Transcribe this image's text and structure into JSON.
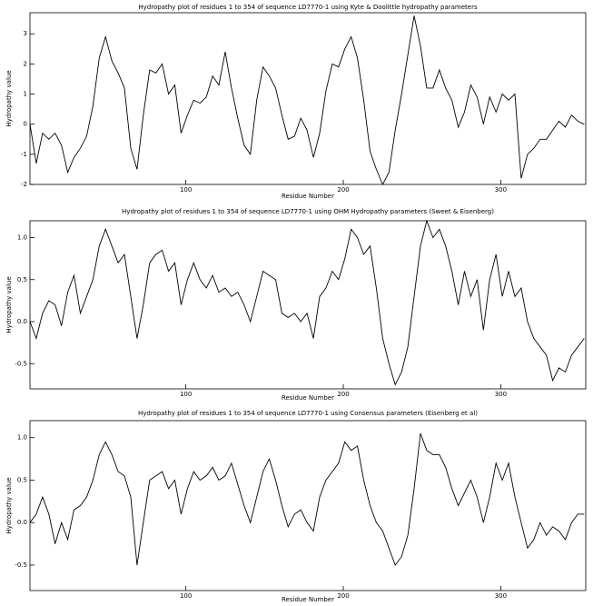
{
  "chart_data": [
    {
      "type": "line",
      "title": "Hydropathy plot of residues 1 to 354 of sequence LD7770-1 using Kyte & Doolittle hydropathy parameters",
      "xlabel": "Residue Number",
      "ylabel": "Hydropathy value",
      "color": "#000000",
      "xlim": [
        1,
        354
      ],
      "xticks": [
        100,
        200,
        300
      ],
      "ylim": [
        -2,
        3.7
      ],
      "yticks": [
        -2,
        -1,
        0,
        1,
        2,
        3
      ],
      "x": [
        1,
        5,
        9,
        13,
        17,
        21,
        25,
        29,
        33,
        37,
        41,
        45,
        49,
        53,
        57,
        61,
        65,
        69,
        73,
        77,
        81,
        85,
        89,
        93,
        97,
        101,
        105,
        109,
        113,
        117,
        121,
        125,
        129,
        133,
        137,
        141,
        145,
        149,
        153,
        157,
        161,
        165,
        169,
        173,
        177,
        181,
        185,
        189,
        193,
        197,
        201,
        205,
        209,
        213,
        217,
        221,
        225,
        229,
        233,
        237,
        241,
        245,
        249,
        253,
        257,
        261,
        265,
        269,
        273,
        277,
        281,
        285,
        289,
        293,
        297,
        301,
        305,
        309,
        313,
        317,
        321,
        325,
        329,
        333,
        337,
        341,
        345,
        349,
        353
      ],
      "values": [
        0,
        -1.3,
        -0.3,
        -0.5,
        -0.3,
        -0.7,
        -1.6,
        -1.1,
        -0.8,
        -0.4,
        0.6,
        2.2,
        2.9,
        2.1,
        1.7,
        1.2,
        -0.8,
        -1.5,
        0.3,
        1.8,
        1.7,
        2.0,
        1.0,
        1.3,
        -0.3,
        0.3,
        0.8,
        0.7,
        0.9,
        1.6,
        1.3,
        2.4,
        1.2,
        0.2,
        -0.7,
        -1.0,
        0.8,
        1.9,
        1.6,
        1.2,
        0.3,
        -0.5,
        -0.4,
        0.2,
        -0.2,
        -1.1,
        -0.3,
        1.1,
        2.0,
        1.9,
        2.5,
        2.9,
        2.2,
        0.8,
        -0.9,
        -1.5,
        -2.0,
        -1.6,
        -0.2,
        1.0,
        2.3,
        3.6,
        2.6,
        1.2,
        1.2,
        1.8,
        1.2,
        0.8,
        -0.1,
        0.4,
        1.3,
        0.9,
        0.0,
        0.9,
        0.4,
        1.0,
        0.8,
        1.0,
        -1.8,
        -1.0,
        -0.8,
        -0.5,
        -0.5,
        -0.2,
        0.1,
        -0.1,
        0.3,
        0.1,
        0.0
      ]
    },
    {
      "type": "line",
      "title": "Hydropathy plot of residues 1 to 354 of sequence LD7770-1 using OHM  Hydropathy parameters (Sweet & Eisenberg)",
      "xlabel": "Residue Number",
      "ylabel": "Hydropathy value",
      "color": "#000000",
      "xlim": [
        1,
        354
      ],
      "xticks": [
        100,
        200,
        300
      ],
      "ylim": [
        -0.8,
        1.2
      ],
      "yticks": [
        {
          "value": -0.5,
          "label": "-0.5"
        },
        {
          "value": 0,
          "label": "0.0"
        },
        {
          "value": 0.5,
          "label": "0.5"
        },
        {
          "value": 1,
          "label": "1.0"
        }
      ],
      "x": [
        1,
        5,
        9,
        13,
        17,
        21,
        25,
        29,
        33,
        37,
        41,
        45,
        49,
        53,
        57,
        61,
        65,
        69,
        73,
        77,
        81,
        85,
        89,
        93,
        97,
        101,
        105,
        109,
        113,
        117,
        121,
        125,
        129,
        133,
        137,
        141,
        145,
        149,
        153,
        157,
        161,
        165,
        169,
        173,
        177,
        181,
        185,
        189,
        193,
        197,
        201,
        205,
        209,
        213,
        217,
        221,
        225,
        229,
        233,
        237,
        241,
        245,
        249,
        253,
        257,
        261,
        265,
        269,
        273,
        277,
        281,
        285,
        289,
        293,
        297,
        301,
        305,
        309,
        313,
        317,
        321,
        325,
        329,
        333,
        337,
        341,
        345,
        349,
        353
      ],
      "values": [
        0.0,
        -0.2,
        0.1,
        0.25,
        0.2,
        -0.05,
        0.35,
        0.55,
        0.1,
        0.3,
        0.5,
        0.9,
        1.1,
        0.9,
        0.7,
        0.8,
        0.3,
        -0.2,
        0.2,
        0.7,
        0.8,
        0.85,
        0.6,
        0.7,
        0.2,
        0.5,
        0.7,
        0.5,
        0.4,
        0.55,
        0.35,
        0.4,
        0.3,
        0.35,
        0.2,
        0.0,
        0.3,
        0.6,
        0.55,
        0.5,
        0.1,
        0.05,
        0.1,
        0.0,
        0.1,
        -0.2,
        0.3,
        0.4,
        0.6,
        0.5,
        0.75,
        1.1,
        1.0,
        0.8,
        0.9,
        0.4,
        -0.2,
        -0.5,
        -0.75,
        -0.6,
        -0.3,
        0.3,
        0.9,
        1.2,
        1.0,
        1.1,
        0.9,
        0.6,
        0.2,
        0.6,
        0.3,
        0.5,
        -0.1,
        0.5,
        0.8,
        0.3,
        0.6,
        0.3,
        0.4,
        0.0,
        -0.2,
        -0.3,
        -0.4,
        -0.7,
        -0.55,
        -0.6,
        -0.4,
        -0.3,
        -0.2
      ]
    },
    {
      "type": "line",
      "title": "Hydropathy plot of residues 1 to 354 of sequence LD7770-1 using Consensus parameters (Eisenberg et al)",
      "xlabel": "Residue Number",
      "ylabel": "Hydropathy value",
      "color": "#000000",
      "xlim": [
        1,
        354
      ],
      "xticks": [
        100,
        200,
        300
      ],
      "ylim": [
        -0.8,
        1.2
      ],
      "yticks": [
        {
          "value": -0.5,
          "label": "-0.5"
        },
        {
          "value": 0,
          "label": "0.0"
        },
        {
          "value": 0.5,
          "label": "0.5"
        },
        {
          "value": 1,
          "label": "1.0"
        }
      ],
      "x": [
        1,
        5,
        9,
        13,
        17,
        21,
        25,
        29,
        33,
        37,
        41,
        45,
        49,
        53,
        57,
        61,
        65,
        69,
        73,
        77,
        81,
        85,
        89,
        93,
        97,
        101,
        105,
        109,
        113,
        117,
        121,
        125,
        129,
        133,
        137,
        141,
        145,
        149,
        153,
        157,
        161,
        165,
        169,
        173,
        177,
        181,
        185,
        189,
        193,
        197,
        201,
        205,
        209,
        213,
        217,
        221,
        225,
        229,
        233,
        237,
        241,
        245,
        249,
        253,
        257,
        261,
        265,
        269,
        273,
        277,
        281,
        285,
        289,
        293,
        297,
        301,
        305,
        309,
        313,
        317,
        321,
        325,
        329,
        333,
        337,
        341,
        345,
        349,
        353
      ],
      "values": [
        0.0,
        0.1,
        0.3,
        0.1,
        -0.25,
        0.0,
        -0.2,
        0.15,
        0.2,
        0.3,
        0.5,
        0.8,
        0.95,
        0.8,
        0.6,
        0.55,
        0.3,
        -0.5,
        0.0,
        0.5,
        0.55,
        0.6,
        0.4,
        0.5,
        0.1,
        0.4,
        0.6,
        0.5,
        0.55,
        0.65,
        0.5,
        0.55,
        0.7,
        0.45,
        0.2,
        0.0,
        0.3,
        0.6,
        0.75,
        0.5,
        0.2,
        -0.05,
        0.1,
        0.15,
        0.0,
        -0.1,
        0.3,
        0.5,
        0.6,
        0.7,
        0.95,
        0.85,
        0.9,
        0.5,
        0.2,
        0.0,
        -0.1,
        -0.3,
        -0.5,
        -0.4,
        -0.15,
        0.4,
        1.05,
        0.85,
        0.8,
        0.8,
        0.65,
        0.4,
        0.2,
        0.35,
        0.5,
        0.3,
        0.0,
        0.3,
        0.7,
        0.5,
        0.7,
        0.3,
        0.0,
        -0.3,
        -0.2,
        0.0,
        -0.15,
        -0.05,
        -0.1,
        -0.2,
        0.0,
        0.1,
        0.1
      ]
    }
  ]
}
